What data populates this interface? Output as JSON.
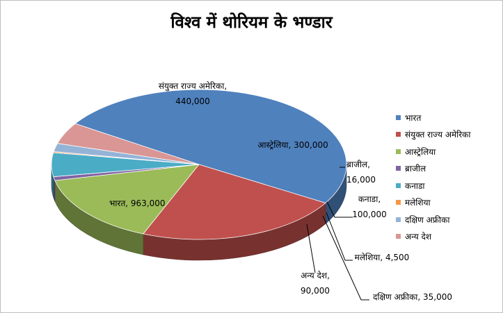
{
  "chart_data": {
    "type": "pie",
    "title": "विश्व में थोरियम के भण्डार",
    "legend_position": "right",
    "slices": [
      {
        "name": "भारत",
        "value": 963000,
        "value_label": "963,000",
        "color": "#4F81BD"
      },
      {
        "name": "संयुक्त राज्य अमेरिका",
        "value": 440000,
        "value_label": "440,000",
        "color": "#C0504D"
      },
      {
        "name": "आस्ट्रेलिया",
        "value": 300000,
        "value_label": "300,000",
        "color": "#9BBB59"
      },
      {
        "name": "ब्राजील",
        "value": 16000,
        "value_label": "16,000",
        "color": "#8064A2"
      },
      {
        "name": "कनाडा",
        "value": 100000,
        "value_label": "100,000",
        "color": "#4BACC6"
      },
      {
        "name": "मलेशिया",
        "value": 4500,
        "value_label": "4,500",
        "color": "#F79646"
      },
      {
        "name": "दक्षिण अफ्रीका",
        "value": 35000,
        "value_label": "35,000",
        "color": "#95B3D7"
      },
      {
        "name": "अन्य देश",
        "value": 90000,
        "value_label": "90,000",
        "color": "#D99694"
      }
    ]
  }
}
